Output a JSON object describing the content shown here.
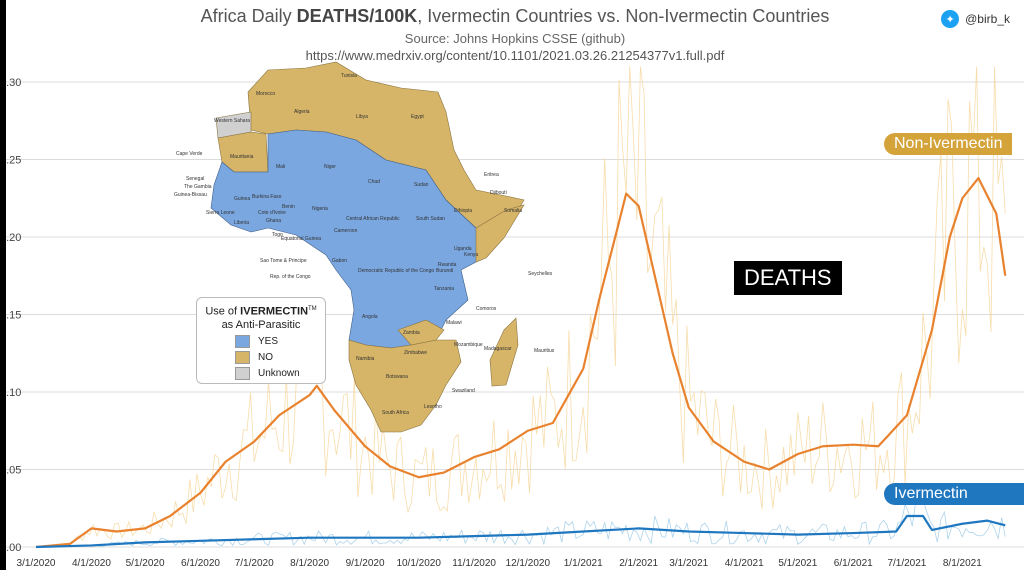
{
  "header": {
    "title_prefix": "Africa Daily ",
    "title_bold": "DEATHS/100K",
    "title_suffix": ", Ivermectin Countries vs. Non-Ivermectin Countries",
    "subtitle": "Source: Johns Hopkins CSSE (github)",
    "url": "https://www.medrxiv.org/content/10.1101/2021.03.26.21254377v1.full.pdf"
  },
  "handle": "@birb_k",
  "labels": {
    "non_ivermectin": "Non-Ivermectin",
    "ivermectin": "Ivermectin",
    "deaths": "DEATHS"
  },
  "legend": {
    "title_prefix": "Use of ",
    "title_bold": "IVERMECTIN",
    "title_tm": "TM",
    "title_line2": "as Anti-Parasitic",
    "items": [
      {
        "label": "YES",
        "color": "#7aa7e0"
      },
      {
        "label": "NO",
        "color": "#d6b468"
      },
      {
        "label": "Unknown",
        "color": "#d0d0d0"
      }
    ]
  },
  "map_labels": [
    "Tunisia",
    "Morocco",
    "Algeria",
    "Libya",
    "Egypt",
    "Western Sahara",
    "Mauritania",
    "Mali",
    "Niger",
    "Chad",
    "Sudan",
    "Eritrea",
    "Cape Verde",
    "Senegal",
    "The Gambia",
    "Guinea-Bissau",
    "Guinea",
    "Burkina Faso",
    "Nigeria",
    "Djibouti",
    "Ethiopia",
    "Somalia",
    "Sierra Leone",
    "Liberia",
    "Cote d'Ivoire",
    "Ghana",
    "Benin",
    "Togo",
    "Cameroon",
    "Central African Republic",
    "South Sudan",
    "Equatorial Guinea",
    "Sao Tome & Principe",
    "Rep. of the Congo",
    "Gabon",
    "Democratic Republic of the Congo",
    "Uganda",
    "Kenya",
    "Rwanda",
    "Burundi",
    "Tanzania",
    "Seychelles",
    "Angola",
    "Zambia",
    "Malawi",
    "Comoros",
    "Mozambique",
    "Namibia",
    "Zimbabwe",
    "Madagascar",
    "Mauritius",
    "Botswana",
    "Swaziland",
    "Lesotho",
    "South Africa"
  ],
  "colors": {
    "non_ivermectin": "#e8822e",
    "ivermectin": "#1f77c0",
    "raw_non": "#f6d79c",
    "raw_iver": "#9fcbe8",
    "map_yes": "#7aa7e0",
    "map_no": "#d6b468"
  },
  "chart_data": {
    "type": "line",
    "x_ticks": [
      "3/1/2020",
      "4/1/2020",
      "5/1/2020",
      "6/1/2020",
      "7/1/2020",
      "8/1/2020",
      "9/1/2020",
      "10/1/2020",
      "11/1/2020",
      "12/1/2020",
      "1/1/2021",
      "2/1/2021",
      "3/1/2021",
      "4/1/2021",
      "5/1/2021",
      "6/1/2021",
      "7/1/2021",
      "8/1/2021"
    ],
    "y_ticks": [
      "0.00",
      "0.05",
      "0.10",
      "0.15",
      "0.20",
      "0.25",
      "0.30"
    ],
    "ylim": [
      0,
      0.3
    ],
    "series": [
      {
        "name": "Non-Ivermectin",
        "x": [
          "3/1/2020",
          "3/20/2020",
          "4/1/2020",
          "4/15/2020",
          "5/1/2020",
          "5/15/2020",
          "6/1/2020",
          "6/15/2020",
          "7/1/2020",
          "7/15/2020",
          "8/1/2020",
          "8/5/2020",
          "8/15/2020",
          "9/1/2020",
          "9/15/2020",
          "10/1/2020",
          "10/15/2020",
          "11/1/2020",
          "11/15/2020",
          "12/1/2020",
          "12/15/2020",
          "1/1/2021",
          "1/10/2021",
          "1/20/2021",
          "1/25/2021",
          "2/1/2021",
          "2/10/2021",
          "2/20/2021",
          "3/1/2021",
          "3/15/2021",
          "4/1/2021",
          "4/15/2021",
          "5/1/2021",
          "5/15/2021",
          "6/1/2021",
          "6/15/2021",
          "7/1/2021",
          "7/15/2021",
          "7/25/2021",
          "8/1/2021",
          "8/10/2021",
          "8/20/2021",
          "8/25/2021"
        ],
        "values": [
          0.0,
          0.002,
          0.012,
          0.01,
          0.012,
          0.02,
          0.035,
          0.055,
          0.068,
          0.085,
          0.098,
          0.104,
          0.088,
          0.065,
          0.052,
          0.045,
          0.048,
          0.058,
          0.063,
          0.075,
          0.08,
          0.115,
          0.16,
          0.205,
          0.228,
          0.22,
          0.175,
          0.125,
          0.09,
          0.068,
          0.055,
          0.05,
          0.06,
          0.065,
          0.066,
          0.065,
          0.085,
          0.14,
          0.2,
          0.225,
          0.238,
          0.215,
          0.175
        ]
      },
      {
        "name": "Ivermectin",
        "x": [
          "3/1/2020",
          "4/1/2020",
          "5/1/2020",
          "6/1/2020",
          "7/1/2020",
          "8/1/2020",
          "9/1/2020",
          "10/1/2020",
          "11/1/2020",
          "12/1/2020",
          "1/1/2021",
          "2/1/2021",
          "3/1/2021",
          "4/1/2021",
          "5/1/2021",
          "6/1/2021",
          "6/25/2021",
          "7/1/2021",
          "7/10/2021",
          "7/15/2021",
          "8/1/2021",
          "8/15/2021",
          "8/25/2021"
        ],
        "values": [
          0.0,
          0.001,
          0.003,
          0.004,
          0.005,
          0.006,
          0.006,
          0.006,
          0.007,
          0.008,
          0.01,
          0.012,
          0.01,
          0.009,
          0.008,
          0.009,
          0.01,
          0.02,
          0.02,
          0.011,
          0.015,
          0.017,
          0.014
        ]
      }
    ]
  }
}
